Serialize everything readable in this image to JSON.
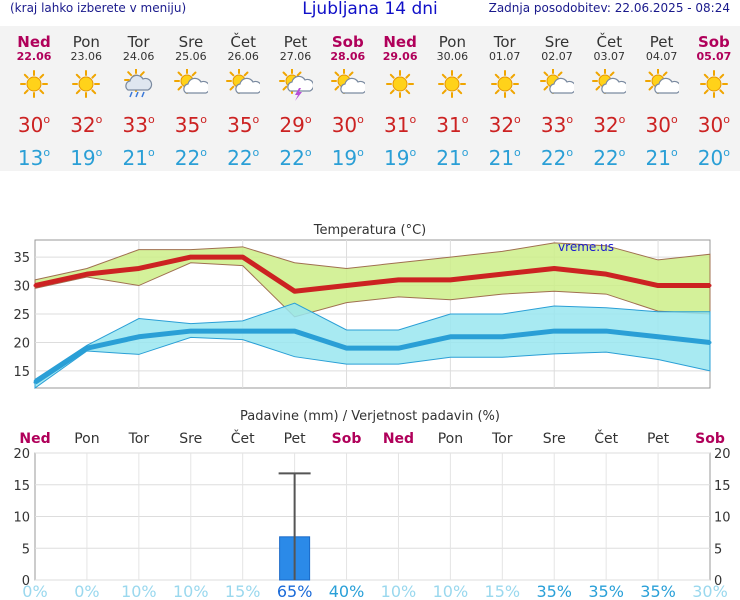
{
  "header": {
    "hint": "(kraj lahko izberete v meniju)",
    "title": "Ljubljana 14 dni",
    "updated": "Zadnja posodobitev: 22.06.2025 - 08:24"
  },
  "days": [
    {
      "name": "Ned",
      "date": "22.06",
      "weekend": true,
      "icon": "sun-icon",
      "max": "30",
      "min": "13"
    },
    {
      "name": "Pon",
      "date": "23.06",
      "weekend": false,
      "icon": "sun-icon",
      "max": "32",
      "min": "19"
    },
    {
      "name": "Tor",
      "date": "24.06",
      "weekend": false,
      "icon": "sun-cloud-rain-icon",
      "max": "33",
      "min": "21"
    },
    {
      "name": "Sre",
      "date": "25.06",
      "weekend": false,
      "icon": "sun-cloud-icon",
      "max": "35",
      "min": "22"
    },
    {
      "name": "Čet",
      "date": "26.06",
      "weekend": false,
      "icon": "sun-cloud-icon",
      "max": "35",
      "min": "22"
    },
    {
      "name": "Pet",
      "date": "27.06",
      "weekend": false,
      "icon": "sun-thunder-icon",
      "max": "29",
      "min": "22"
    },
    {
      "name": "Sob",
      "date": "28.06",
      "weekend": true,
      "icon": "sun-cloud-icon",
      "max": "30",
      "min": "19"
    },
    {
      "name": "Ned",
      "date": "29.06",
      "weekend": true,
      "icon": "sun-icon",
      "max": "31",
      "min": "19"
    },
    {
      "name": "Pon",
      "date": "30.06",
      "weekend": false,
      "icon": "sun-icon",
      "max": "31",
      "min": "21"
    },
    {
      "name": "Tor",
      "date": "01.07",
      "weekend": false,
      "icon": "sun-icon",
      "max": "32",
      "min": "21"
    },
    {
      "name": "Sre",
      "date": "02.07",
      "weekend": false,
      "icon": "sun-cloud-icon",
      "max": "33",
      "min": "22"
    },
    {
      "name": "Čet",
      "date": "03.07",
      "weekend": false,
      "icon": "sun-cloud-icon",
      "max": "32",
      "min": "22"
    },
    {
      "name": "Pet",
      "date": "04.07",
      "weekend": false,
      "icon": "sun-cloud-icon",
      "max": "30",
      "min": "21"
    },
    {
      "name": "Sob",
      "date": "05.07",
      "weekend": true,
      "icon": "sun-icon",
      "max": "30",
      "min": "20"
    }
  ],
  "degree_symbol": "o",
  "colors": {
    "weekend": "#b0005a",
    "max_temp": "#cc2222",
    "min_temp": "#2a9fd6",
    "max_band": "#ccee88",
    "min_band": "#99e6f0",
    "precip_bar": "#2b8ae8"
  },
  "chart_data": [
    {
      "type": "line",
      "title": "Temperatura (°C)",
      "watermark": "vreme.us",
      "x": [
        "22.06",
        "23.06",
        "24.06",
        "25.06",
        "26.06",
        "27.06",
        "28.06",
        "29.06",
        "30.06",
        "01.07",
        "02.07",
        "03.07",
        "04.07",
        "05.07"
      ],
      "ylim": [
        12,
        38
      ],
      "yticks": [
        15,
        20,
        25,
        30,
        35
      ],
      "grid": true,
      "series": [
        {
          "key": "max",
          "values": [
            30,
            32,
            33,
            35,
            35,
            29,
            30,
            31,
            31,
            32,
            33,
            32,
            30,
            30
          ]
        },
        {
          "key": "max_high",
          "values": [
            31,
            33,
            36.3,
            36.3,
            36.8,
            34,
            33,
            34,
            35,
            36,
            37.5,
            37,
            34.5,
            35.5
          ]
        },
        {
          "key": "max_low",
          "values": [
            29.5,
            31.5,
            30,
            34,
            33.5,
            24.5,
            27,
            28,
            27.5,
            28.5,
            29,
            28.5,
            25.5,
            25
          ]
        },
        {
          "key": "min",
          "values": [
            13,
            19,
            21,
            22,
            22,
            22,
            19,
            19,
            21,
            21,
            22,
            22,
            21,
            20
          ]
        },
        {
          "key": "min_high",
          "values": [
            13.5,
            19.5,
            24.2,
            23.3,
            23.8,
            26.9,
            22.2,
            22.2,
            25,
            25,
            26.4,
            26.1,
            25.4,
            25.4
          ]
        },
        {
          "key": "min_low",
          "values": [
            12,
            18.5,
            17.9,
            20.9,
            20.5,
            17.5,
            16.2,
            16.2,
            17.4,
            17.4,
            18,
            18.3,
            17,
            15
          ]
        }
      ]
    },
    {
      "type": "bar",
      "title": "Padavine (mm) / Verjetnost padavin (%)",
      "categories": [
        "Ned",
        "Pon",
        "Tor",
        "Sre",
        "Čet",
        "Pet",
        "Sob",
        "Ned",
        "Pon",
        "Tor",
        "Sre",
        "Čet",
        "Pet",
        "Sob"
      ],
      "weekend": [
        true,
        false,
        false,
        false,
        false,
        false,
        true,
        true,
        false,
        false,
        false,
        false,
        false,
        true
      ],
      "ylim": [
        0,
        20
      ],
      "yticks": [
        0,
        5,
        10,
        15,
        20
      ],
      "values": [
        0,
        0,
        0,
        0,
        0,
        6.8,
        0,
        0,
        0,
        0,
        0,
        0,
        0,
        0
      ],
      "error_high": [
        0,
        0,
        0,
        0,
        0,
        16.8,
        0,
        0,
        0,
        0,
        0,
        0,
        0,
        0
      ],
      "probability": [
        "0%",
        "0%",
        "10%",
        "10%",
        "15%",
        "65%",
        "40%",
        "10%",
        "10%",
        "15%",
        "35%",
        "35%",
        "35%",
        "30%"
      ],
      "probability_values": [
        0,
        0,
        10,
        10,
        15,
        65,
        40,
        10,
        10,
        15,
        35,
        35,
        35,
        30
      ]
    }
  ]
}
